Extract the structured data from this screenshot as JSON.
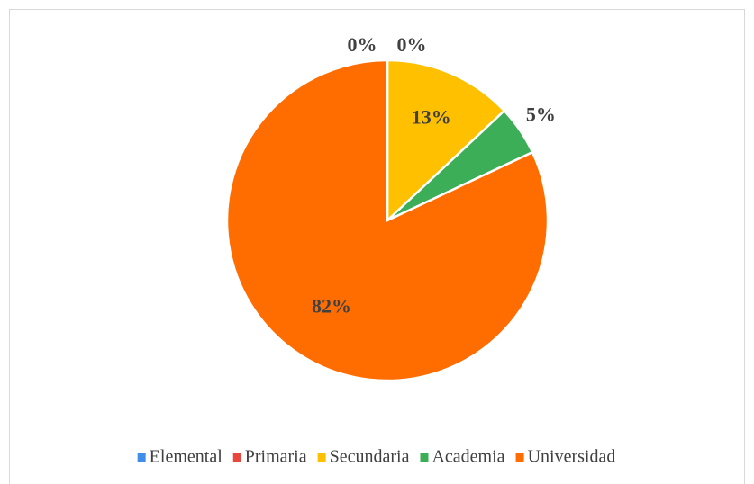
{
  "chart_data": {
    "type": "pie",
    "categories": [
      "Elemental",
      "Primaria",
      "Secundaria",
      "Academia",
      "Universidad"
    ],
    "values": [
      0,
      0,
      13,
      5,
      82
    ],
    "value_labels": [
      "0%",
      "0%",
      "13%",
      "5%",
      "82%"
    ],
    "colors": [
      "#3f8ee8",
      "#e8483b",
      "#ffc000",
      "#3cae57",
      "#ff6d00"
    ],
    "legend": "bottom"
  }
}
